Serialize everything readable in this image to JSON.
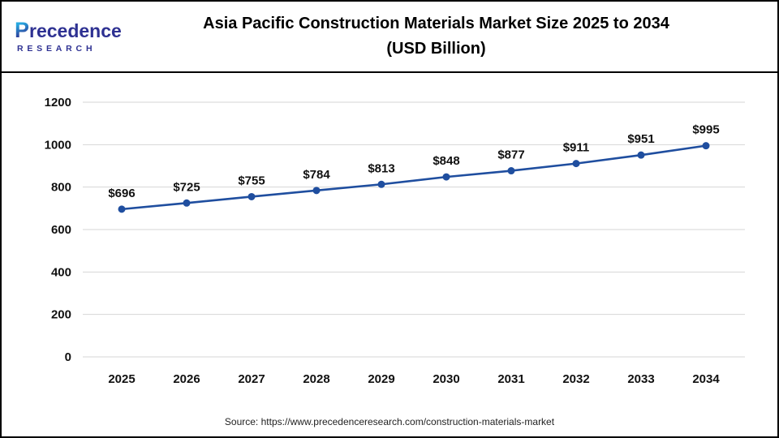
{
  "logo": {
    "name": "Precedence Research",
    "p": "P",
    "rest": "recedence",
    "subtitle": "RESEARCH"
  },
  "header": {
    "title_line1": "Asia Pacific Construction Materials Market Size 2025 to 2034",
    "title_line2": "(USD Billion)"
  },
  "footer": {
    "source": "Source: https://www.precedenceresearch.com/construction-materials-market"
  },
  "chart_data": {
    "type": "line",
    "title": "Asia Pacific Construction Materials Market Size 2025 to 2034 (USD Billion)",
    "categories": [
      "2025",
      "2026",
      "2027",
      "2028",
      "2029",
      "2030",
      "2031",
      "2032",
      "2033",
      "2034"
    ],
    "series": [
      {
        "name": "Asia Pacific Construction Materials Market Size (USD Billion)",
        "values": [
          696,
          725,
          755,
          784,
          813,
          848,
          877,
          911,
          951,
          995
        ]
      }
    ],
    "data_label_prefix": "$",
    "xlabel": "",
    "ylabel": "",
    "ylim": [
      0,
      1200
    ],
    "ytick_interval": 200,
    "grid": true,
    "legend": "none",
    "line_color": "#1f4e9f",
    "marker": "circle"
  },
  "colors": {
    "line": "#1f4e9f",
    "grid": "#d6d6d6",
    "label": "#111111",
    "logo_blue": "#2e3192",
    "logo_light": "#27aae1"
  }
}
